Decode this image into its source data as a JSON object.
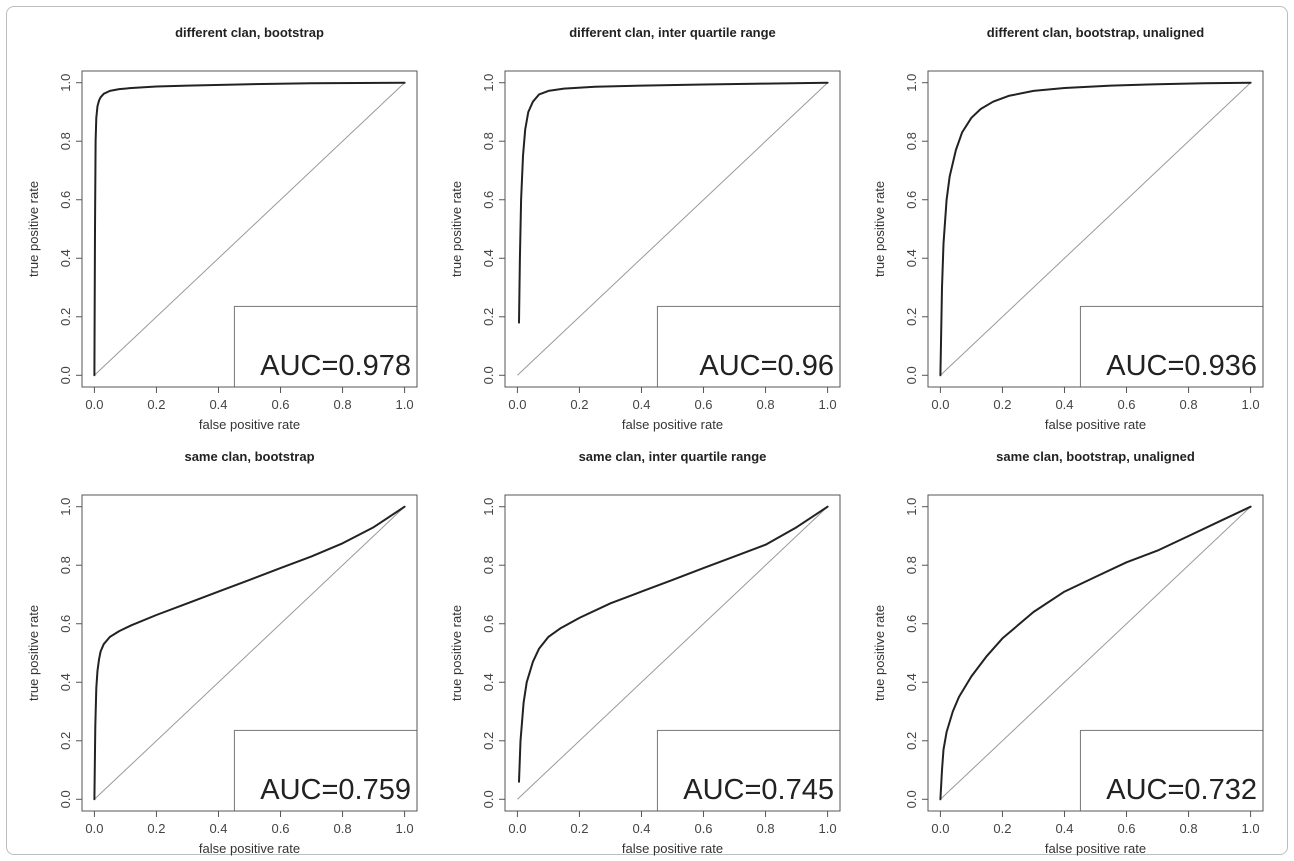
{
  "chart_data": [
    {
      "type": "line",
      "title": "different clan, bootstrap",
      "xlabel": "false positive rate",
      "ylabel": "true positive rate",
      "xlim": [
        0,
        1
      ],
      "ylim": [
        0,
        1
      ],
      "xticks": [
        "0.0",
        "0.2",
        "0.4",
        "0.6",
        "0.8",
        "1.0"
      ],
      "yticks": [
        "0.0",
        "0.2",
        "0.4",
        "0.6",
        "0.8",
        "1.0"
      ],
      "auc": "AUC=0.978",
      "series": [
        {
          "x": [
            0,
            0.002,
            0.004,
            0.006,
            0.01,
            0.015,
            0.02,
            0.03,
            0.05,
            0.08,
            0.12,
            0.2,
            0.3,
            0.5,
            0.7,
            1.0
          ],
          "y": [
            0.0,
            0.5,
            0.8,
            0.88,
            0.92,
            0.94,
            0.95,
            0.962,
            0.972,
            0.978,
            0.982,
            0.987,
            0.99,
            0.995,
            0.998,
            1.0
          ]
        }
      ]
    },
    {
      "type": "line",
      "title": "different clan, inter quartile range",
      "xlabel": "false positive rate",
      "ylabel": "true positive rate",
      "xlim": [
        0,
        1
      ],
      "ylim": [
        0,
        1
      ],
      "xticks": [
        "0.0",
        "0.2",
        "0.4",
        "0.6",
        "0.8",
        "1.0"
      ],
      "yticks": [
        "0.0",
        "0.2",
        "0.4",
        "0.6",
        "0.8",
        "1.0"
      ],
      "auc": "AUC=0.96",
      "series": [
        {
          "x": [
            0.005,
            0.008,
            0.012,
            0.018,
            0.025,
            0.035,
            0.05,
            0.07,
            0.1,
            0.15,
            0.25,
            0.4,
            0.6,
            0.8,
            1.0
          ],
          "y": [
            0.18,
            0.4,
            0.6,
            0.75,
            0.84,
            0.9,
            0.935,
            0.96,
            0.972,
            0.98,
            0.986,
            0.99,
            0.994,
            0.997,
            1.0
          ]
        }
      ]
    },
    {
      "type": "line",
      "title": "different clan, bootstrap, unaligned",
      "xlabel": "false positive rate",
      "ylabel": "true positive rate",
      "xlim": [
        0,
        1
      ],
      "ylim": [
        0,
        1
      ],
      "xticks": [
        "0.0",
        "0.2",
        "0.4",
        "0.6",
        "0.8",
        "1.0"
      ],
      "yticks": [
        "0.0",
        "0.2",
        "0.4",
        "0.6",
        "0.8",
        "1.0"
      ],
      "auc": "AUC=0.936",
      "series": [
        {
          "x": [
            0,
            0.005,
            0.01,
            0.02,
            0.03,
            0.05,
            0.07,
            0.1,
            0.13,
            0.17,
            0.22,
            0.3,
            0.4,
            0.55,
            0.7,
            0.85,
            1.0
          ],
          "y": [
            0.0,
            0.3,
            0.45,
            0.6,
            0.68,
            0.77,
            0.83,
            0.88,
            0.91,
            0.935,
            0.955,
            0.972,
            0.982,
            0.99,
            0.995,
            0.998,
            1.0
          ]
        }
      ]
    },
    {
      "type": "line",
      "title": "same clan, bootstrap",
      "xlabel": "false positive rate",
      "ylabel": "true positive rate",
      "xlim": [
        0,
        1
      ],
      "ylim": [
        0,
        1
      ],
      "xticks": [
        "0.0",
        "0.2",
        "0.4",
        "0.6",
        "0.8",
        "1.0"
      ],
      "yticks": [
        "0.0",
        "0.2",
        "0.4",
        "0.6",
        "0.8",
        "1.0"
      ],
      "auc": "AUC=0.759",
      "series": [
        {
          "x": [
            0,
            0.003,
            0.006,
            0.01,
            0.015,
            0.02,
            0.03,
            0.05,
            0.08,
            0.12,
            0.2,
            0.3,
            0.4,
            0.5,
            0.6,
            0.7,
            0.8,
            0.9,
            1.0
          ],
          "y": [
            0.0,
            0.25,
            0.38,
            0.44,
            0.48,
            0.505,
            0.53,
            0.555,
            0.575,
            0.595,
            0.63,
            0.67,
            0.71,
            0.75,
            0.79,
            0.83,
            0.875,
            0.93,
            1.0
          ]
        }
      ]
    },
    {
      "type": "line",
      "title": "same clan, inter quartile range",
      "xlabel": "false positive rate",
      "ylabel": "true positive rate",
      "xlim": [
        0,
        1
      ],
      "ylim": [
        0,
        1
      ],
      "xticks": [
        "0.0",
        "0.2",
        "0.4",
        "0.6",
        "0.8",
        "1.0"
      ],
      "yticks": [
        "0.0",
        "0.2",
        "0.4",
        "0.6",
        "0.8",
        "1.0"
      ],
      "auc": "AUC=0.745",
      "series": [
        {
          "x": [
            0.005,
            0.01,
            0.02,
            0.03,
            0.05,
            0.07,
            0.1,
            0.14,
            0.2,
            0.3,
            0.4,
            0.5,
            0.6,
            0.7,
            0.8,
            0.9,
            1.0
          ],
          "y": [
            0.06,
            0.2,
            0.33,
            0.4,
            0.47,
            0.515,
            0.555,
            0.585,
            0.62,
            0.67,
            0.71,
            0.75,
            0.79,
            0.83,
            0.87,
            0.93,
            1.0
          ]
        }
      ]
    },
    {
      "type": "line",
      "title": "same clan, bootstrap, unaligned",
      "xlabel": "false positive rate",
      "ylabel": "true positive rate",
      "xlim": [
        0,
        1
      ],
      "ylim": [
        0,
        1
      ],
      "xticks": [
        "0.0",
        "0.2",
        "0.4",
        "0.6",
        "0.8",
        "1.0"
      ],
      "yticks": [
        "0.0",
        "0.2",
        "0.4",
        "0.6",
        "0.8",
        "1.0"
      ],
      "auc": "AUC=0.732",
      "series": [
        {
          "x": [
            0,
            0.005,
            0.01,
            0.02,
            0.04,
            0.06,
            0.1,
            0.15,
            0.2,
            0.3,
            0.4,
            0.5,
            0.6,
            0.7,
            0.8,
            0.9,
            1.0
          ],
          "y": [
            0.0,
            0.1,
            0.17,
            0.23,
            0.3,
            0.35,
            0.42,
            0.49,
            0.55,
            0.64,
            0.71,
            0.76,
            0.81,
            0.85,
            0.9,
            0.95,
            1.0
          ]
        }
      ]
    }
  ]
}
